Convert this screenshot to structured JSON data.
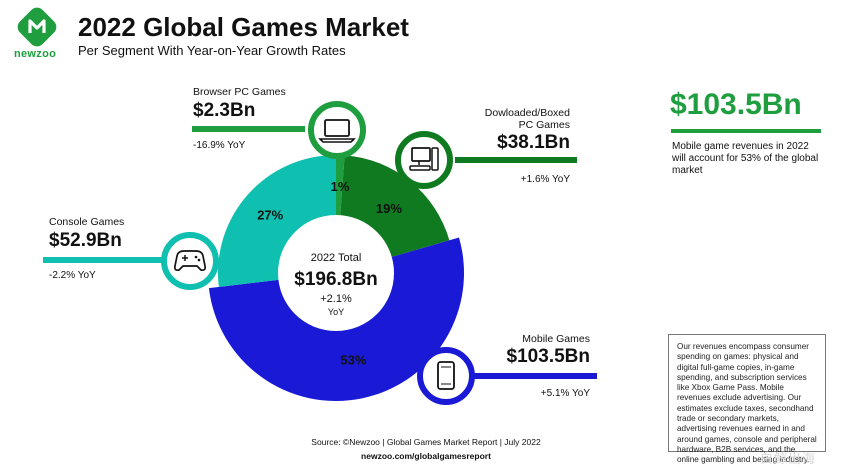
{
  "header": {
    "brand": "newzoo",
    "title": "2022 Global Games Market",
    "subtitle": "Per Segment With Year-on-Year Growth Rates"
  },
  "colors": {
    "brand_green": "#1e9e3e",
    "browser": "#1e9e3e",
    "boxed_pc": "#0f7a1f",
    "mobile": "#1a1ad6",
    "console": "#0fbfb0"
  },
  "chart_data": {
    "type": "pie",
    "title": "2022 Global Games Market",
    "subtitle": "Per Segment With Year-on-Year Growth Rates",
    "total": {
      "label": "2022 Total",
      "value": "$196.8Bn",
      "growth": "+2.1%",
      "growth_unit": "YoY"
    },
    "segments": [
      {
        "key": "browser",
        "name": "Browser PC Games",
        "value_bn": 2.3,
        "value_label": "$2.3Bn",
        "share": 1,
        "share_label": "1%",
        "growth": "-16.9% YoY",
        "color": "#1e9e3e",
        "icon": "laptop-icon"
      },
      {
        "key": "boxed_pc",
        "name": "Dowloaded/Boxed PC Games",
        "name_line1": "Dowloaded/Boxed",
        "name_line2": "PC Games",
        "value_bn": 38.1,
        "value_label": "$38.1Bn",
        "share": 19,
        "share_label": "19%",
        "growth": "+1.6% YoY",
        "color": "#0f7a1f",
        "icon": "desktop-pc-icon"
      },
      {
        "key": "mobile",
        "name": "Mobile Games",
        "value_bn": 103.5,
        "value_label": "$103.5Bn",
        "share": 53,
        "share_label": "53%",
        "growth": "+5.1% YoY",
        "color": "#1a1ad6",
        "icon": "smartphone-icon"
      },
      {
        "key": "console",
        "name": "Console Games",
        "value_bn": 52.9,
        "value_label": "$52.9Bn",
        "share": 27,
        "share_label": "27%",
        "growth": "-2.2% YoY",
        "color": "#0fbfb0",
        "icon": "gamepad-icon"
      }
    ]
  },
  "highlight": {
    "value": "$103.5Bn",
    "text": "Mobile game revenues in 2022 will account for 53% of the global market"
  },
  "note": "Our revenues encompass consumer spending on games: physical and digital full-game copies, in-game spending, and subscription services like Xbox Game Pass. Mobile revenues exclude advertising. Our estimates exclude taxes, secondhand trade or secondary markets, advertising revenues earned in and around games, console and peripheral hardware, B2B services, and the online gambling and betting industry.",
  "footer": {
    "source": "Source: ©Newzoo | Global Games Market Report | July 2022",
    "url": "newzoo.com/globalgamesreport"
  },
  "watermark": "白鲸出海"
}
